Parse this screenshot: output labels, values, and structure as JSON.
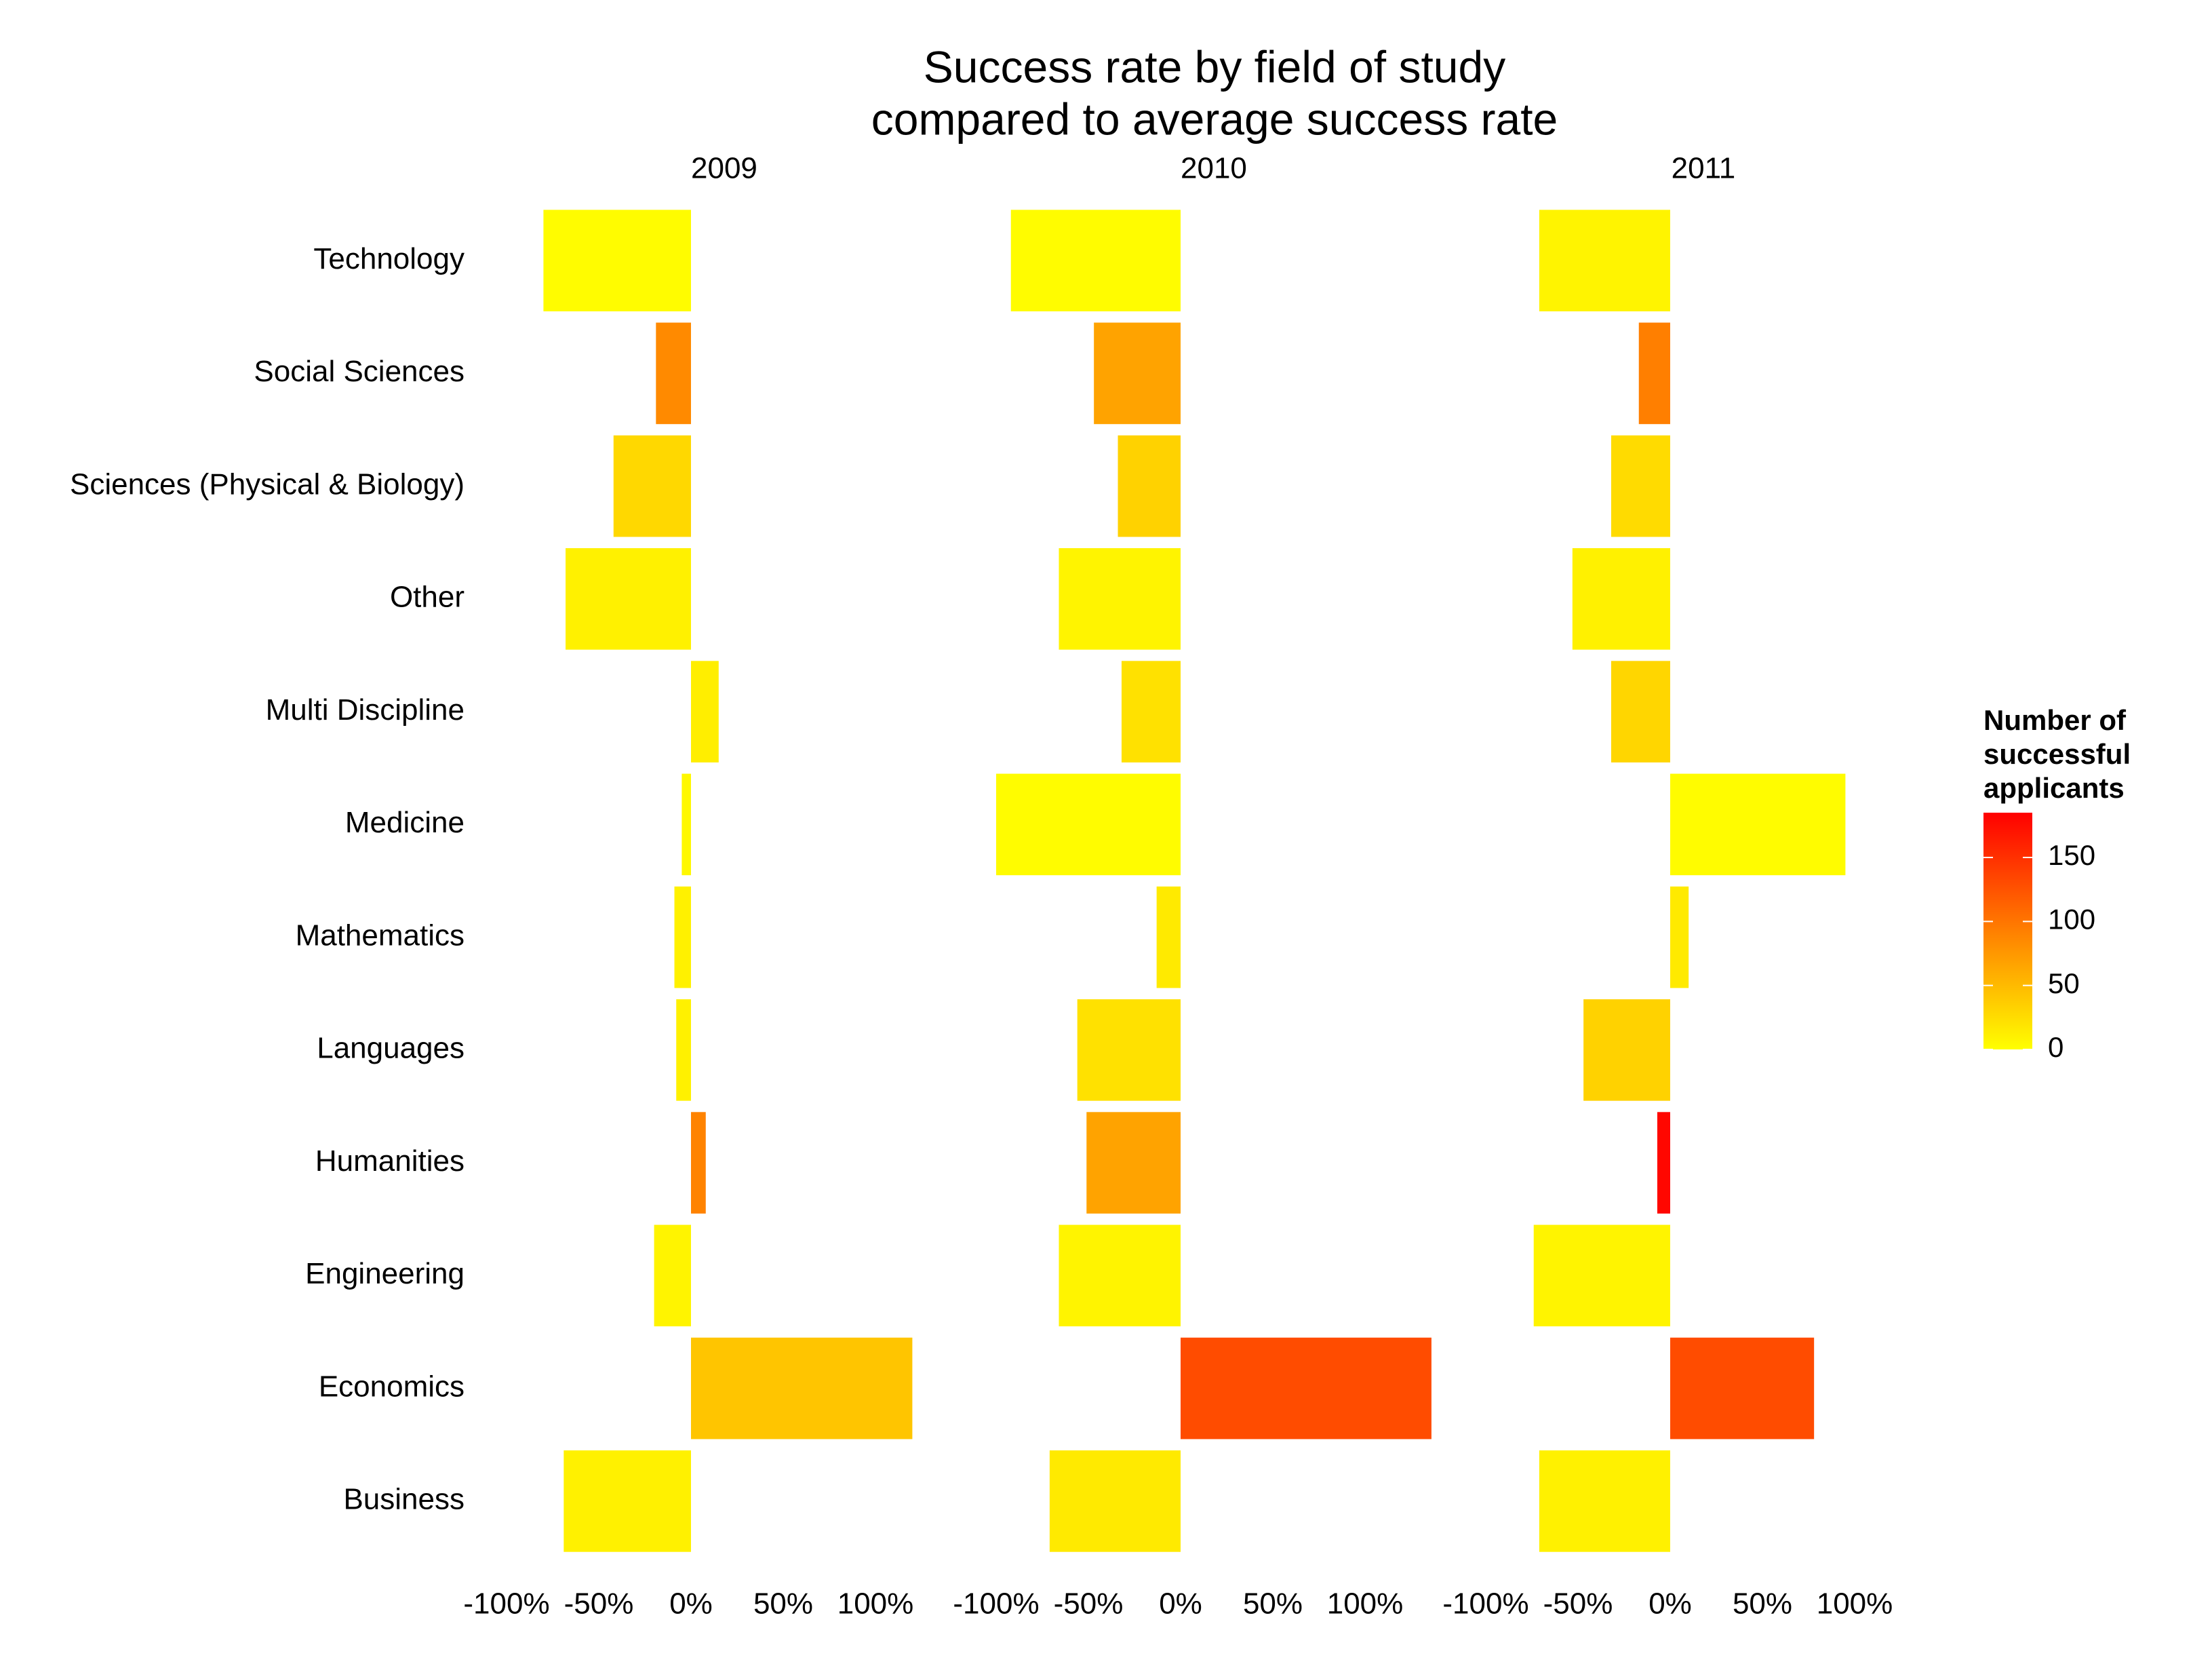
{
  "chart_data": {
    "type": "bar",
    "orientation": "horizontal",
    "title": [
      "Success rate by field of study",
      "compared to average success rate"
    ],
    "categories": [
      "Technology",
      "Social Sciences",
      "Sciences (Physical & Biology)",
      "Other",
      "Multi Discipline",
      "Medicine",
      "Mathematics",
      "Languages",
      "Humanities",
      "Engineering",
      "Economics",
      "Business"
    ],
    "facets": [
      {
        "label": "2009",
        "values": [
          -80,
          -19,
          -42,
          -68,
          15,
          -5,
          -9,
          -8,
          8,
          -20,
          120,
          -69
        ],
        "fill_values": [
          2,
          85,
          28,
          10,
          12,
          5,
          10,
          10,
          90,
          8,
          42,
          10
        ]
      },
      {
        "label": "2010",
        "values": [
          -92,
          -47,
          -34,
          -66,
          -32,
          -100,
          -13,
          -56,
          -51,
          -66,
          136,
          -71
        ],
        "fill_values": [
          2,
          67,
          33,
          8,
          22,
          2,
          15,
          22,
          67,
          8,
          130,
          15
        ]
      },
      {
        "label": "2011",
        "values": [
          -71,
          -17,
          -32,
          -53,
          -32,
          95,
          10,
          -47,
          -7,
          -74,
          78,
          -71
        ],
        "fill_values": [
          8,
          93,
          26,
          10,
          30,
          2,
          15,
          33,
          180,
          8,
          130,
          10
        ]
      }
    ],
    "xlim": [
      -112,
      148
    ],
    "xticks": [
      {
        "value": -100,
        "label": "-100%"
      },
      {
        "value": -50,
        "label": "-50%"
      },
      {
        "value": 0,
        "label": "0%"
      },
      {
        "value": 50,
        "label": "50%"
      },
      {
        "value": 100,
        "label": "100%"
      }
    ],
    "legend_title": [
      "Number of",
      "successful",
      "applicants"
    ],
    "color_low": "#ffff00",
    "color_high": "#ff0000",
    "colorbar_lim": [
      0,
      185
    ],
    "colorbar_ticks": [
      0,
      50,
      100,
      150
    ],
    "grid": false
  }
}
